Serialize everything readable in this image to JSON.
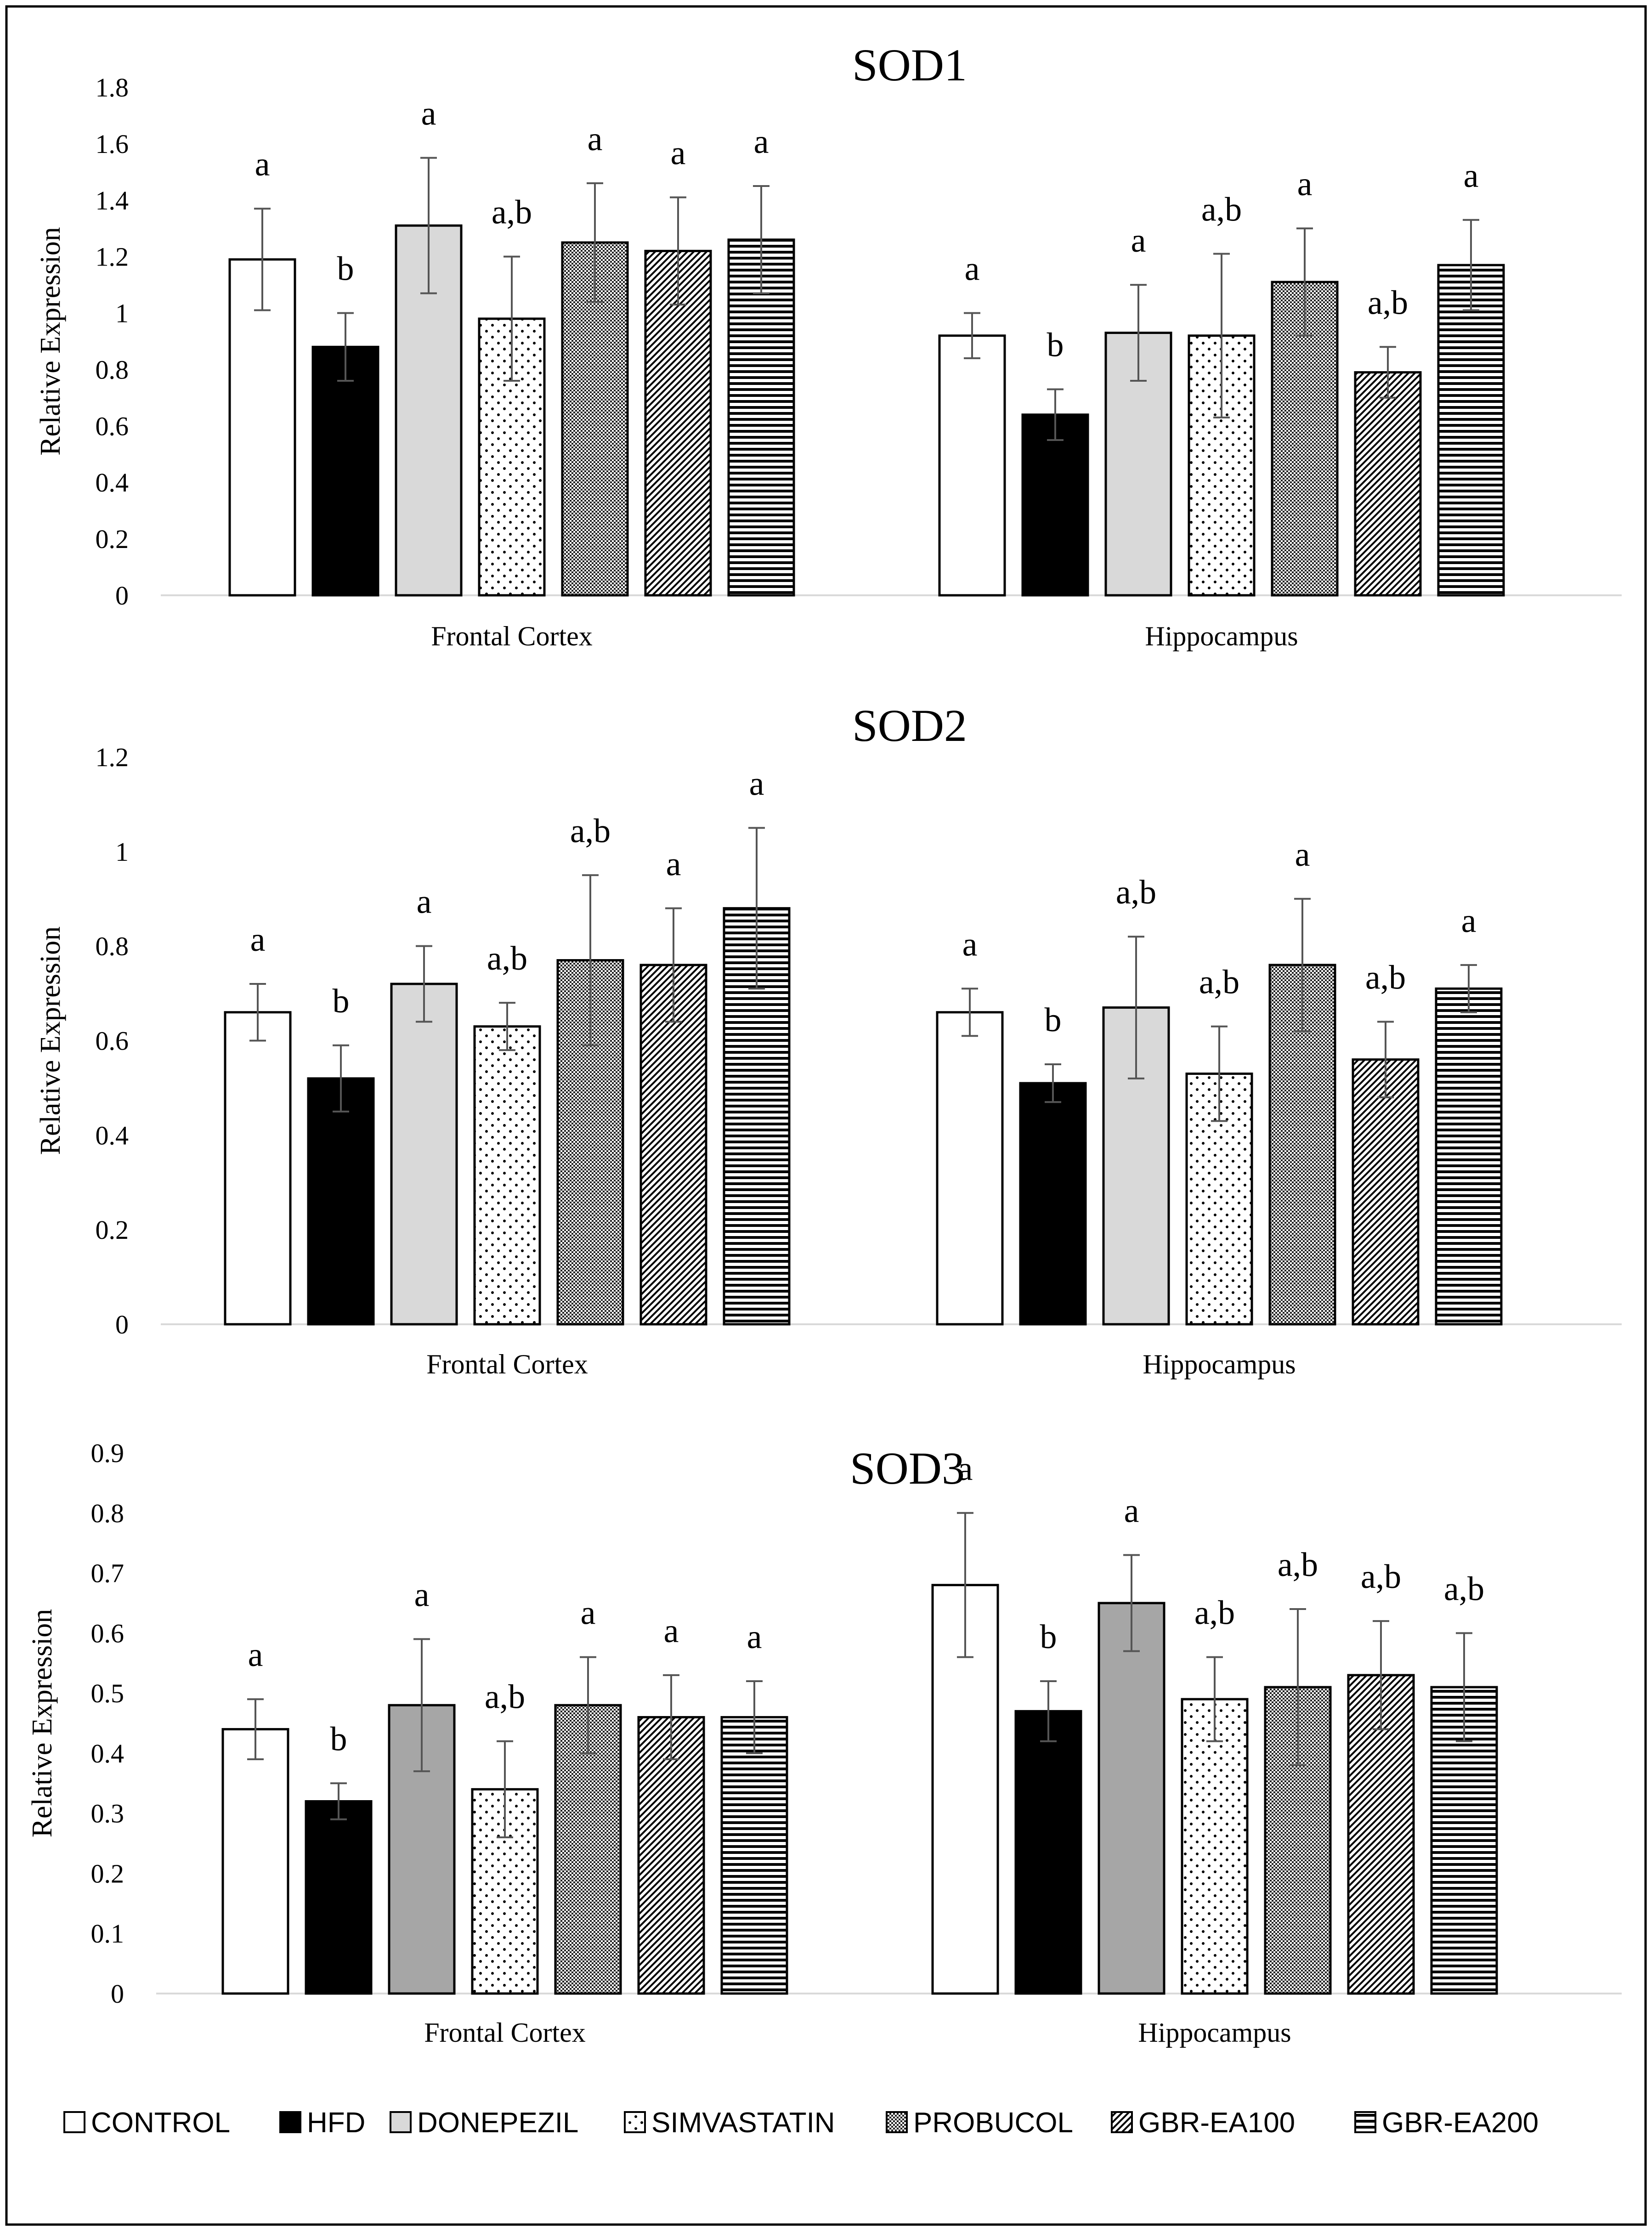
{
  "patterns": {
    "CONTROL": "solid-white",
    "HFD": "solid-black",
    "DONEPEZIL": "solid-gray",
    "SIMVASTATIN": "dots",
    "PROBUCOL": "dense-crosshatch",
    "GBR-EA100": "diagonal-lines",
    "GBR-EA200": "horizontal-lines"
  },
  "colors": {
    "border": "#000000",
    "axis": "#d9d9d9",
    "hfd": "#000000",
    "donepezil_sod12": "#d9d9d9",
    "donepezil_sod3": "#a6a6a6"
  },
  "legend": {
    "items": [
      "CONTROL",
      "HFD",
      "DONEPEZIL",
      "SIMVASTATIN",
      "PROBUCOL",
      "GBR-EA100",
      "GBR-EA200"
    ]
  },
  "chart_data": [
    {
      "type": "bar",
      "title": "SOD1",
      "ylabel": "Relative Expression",
      "xlabel": "",
      "ylim": [
        0,
        1.8
      ],
      "yticks": [
        "0",
        "0.2",
        "0.4",
        "0.6",
        "0.8",
        "1",
        "1.2",
        "1.4",
        "1.6",
        "1.8"
      ],
      "categories": [
        "Frontal Cortex",
        "Hippocampus"
      ],
      "series": [
        {
          "name": "CONTROL",
          "values": [
            1.19,
            0.92
          ],
          "errors": [
            0.18,
            0.08
          ],
          "labels": [
            "a",
            "a"
          ]
        },
        {
          "name": "HFD",
          "values": [
            0.88,
            0.64
          ],
          "errors": [
            0.12,
            0.09
          ],
          "labels": [
            "b",
            "b"
          ]
        },
        {
          "name": "DONEPEZIL",
          "values": [
            1.31,
            0.93
          ],
          "errors": [
            0.24,
            0.17
          ],
          "labels": [
            "a",
            "a"
          ]
        },
        {
          "name": "SIMVASTATIN",
          "values": [
            0.98,
            0.92
          ],
          "errors": [
            0.22,
            0.29
          ],
          "labels": [
            "a,b",
            "a,b"
          ]
        },
        {
          "name": "PROBUCOL",
          "values": [
            1.25,
            1.11
          ],
          "errors": [
            0.21,
            0.19
          ],
          "labels": [
            "a",
            "a"
          ]
        },
        {
          "name": "GBR-EA100",
          "values": [
            1.22,
            0.79
          ],
          "errors": [
            0.19,
            0.09
          ],
          "labels": [
            "a",
            "a,b"
          ]
        },
        {
          "name": "GBR-EA200",
          "values": [
            1.26,
            1.17
          ],
          "errors": [
            0.19,
            0.16
          ],
          "labels": [
            "a",
            "a"
          ]
        }
      ]
    },
    {
      "type": "bar",
      "title": "SOD2",
      "ylabel": "Relative Expression",
      "xlabel": "",
      "ylim": [
        0,
        1.2
      ],
      "yticks": [
        "0",
        "0.2",
        "0.4",
        "0.6",
        "0.8",
        "1",
        "1.2"
      ],
      "categories": [
        "Frontal Cortex",
        "Hippocampus"
      ],
      "series": [
        {
          "name": "CONTROL",
          "values": [
            0.66,
            0.66
          ],
          "errors": [
            0.06,
            0.05
          ],
          "labels": [
            "a",
            "a"
          ]
        },
        {
          "name": "HFD",
          "values": [
            0.52,
            0.51
          ],
          "errors": [
            0.07,
            0.04
          ],
          "labels": [
            "b",
            "b"
          ]
        },
        {
          "name": "DONEPEZIL",
          "values": [
            0.72,
            0.67
          ],
          "errors": [
            0.08,
            0.15
          ],
          "labels": [
            "a",
            "a,b"
          ]
        },
        {
          "name": "SIMVASTATIN",
          "values": [
            0.63,
            0.53
          ],
          "errors": [
            0.05,
            0.1
          ],
          "labels": [
            "a,b",
            "a,b"
          ]
        },
        {
          "name": "PROBUCOL",
          "values": [
            0.77,
            0.76
          ],
          "errors": [
            0.18,
            0.14
          ],
          "labels": [
            "a,b",
            "a"
          ]
        },
        {
          "name": "GBR-EA100",
          "values": [
            0.76,
            0.56
          ],
          "errors": [
            0.12,
            0.08
          ],
          "labels": [
            "a",
            "a,b"
          ]
        },
        {
          "name": "GBR-EA200",
          "values": [
            0.88,
            0.71
          ],
          "errors": [
            0.17,
            0.05
          ],
          "labels": [
            "a",
            "a"
          ]
        }
      ]
    },
    {
      "type": "bar",
      "title": "SOD3",
      "ylabel": "Relative Expression",
      "xlabel": "",
      "ylim": [
        0,
        0.9
      ],
      "yticks": [
        "0",
        "0.1",
        "0.2",
        "0.3",
        "0.4",
        "0.5",
        "0.6",
        "0.7",
        "0.8",
        "0.9"
      ],
      "categories": [
        "Frontal Cortex",
        "Hippocampus"
      ],
      "series": [
        {
          "name": "CONTROL",
          "values": [
            0.44,
            0.68
          ],
          "errors": [
            0.05,
            0.12
          ],
          "labels": [
            "a",
            "a"
          ]
        },
        {
          "name": "HFD",
          "values": [
            0.32,
            0.47
          ],
          "errors": [
            0.03,
            0.05
          ],
          "labels": [
            "b",
            "b"
          ]
        },
        {
          "name": "DONEPEZIL",
          "values": [
            0.48,
            0.65
          ],
          "errors": [
            0.11,
            0.08
          ],
          "labels": [
            "a",
            "a"
          ]
        },
        {
          "name": "SIMVASTATIN",
          "values": [
            0.34,
            0.49
          ],
          "errors": [
            0.08,
            0.07
          ],
          "labels": [
            "a,b",
            "a,b"
          ]
        },
        {
          "name": "PROBUCOL",
          "values": [
            0.48,
            0.51
          ],
          "errors": [
            0.08,
            0.13
          ],
          "labels": [
            "a",
            "a,b"
          ]
        },
        {
          "name": "GBR-EA100",
          "values": [
            0.46,
            0.53
          ],
          "errors": [
            0.07,
            0.09
          ],
          "labels": [
            "a",
            "a,b"
          ]
        },
        {
          "name": "GBR-EA200",
          "values": [
            0.46,
            0.51
          ],
          "errors": [
            0.06,
            0.09
          ],
          "labels": [
            "a",
            "a,b"
          ]
        }
      ]
    }
  ]
}
